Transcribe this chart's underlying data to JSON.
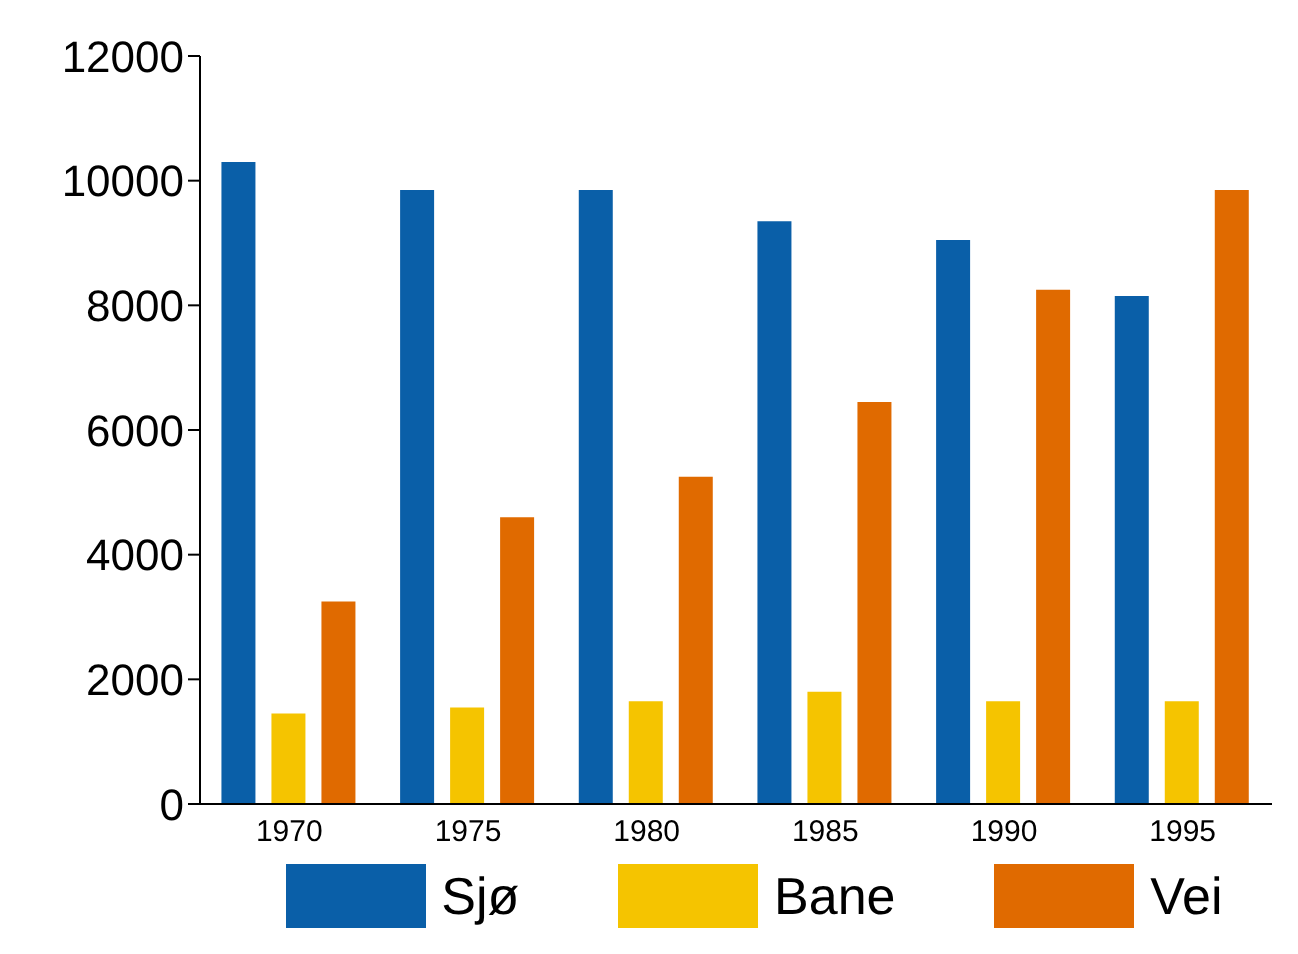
{
  "chart_data": {
    "type": "bar",
    "categories": [
      "1970",
      "1975",
      "1980",
      "1985",
      "1990",
      "1995"
    ],
    "series": [
      {
        "name": "Sjø",
        "color": "#0a5fa8",
        "values": [
          10300,
          9850,
          9850,
          9350,
          9050,
          8150
        ]
      },
      {
        "name": "Bane",
        "color": "#f5c400",
        "values": [
          1450,
          1550,
          1650,
          1800,
          1650,
          1650
        ]
      },
      {
        "name": "Vei",
        "color": "#e06a00",
        "values": [
          3250,
          4600,
          5250,
          6450,
          8250,
          9850
        ]
      }
    ],
    "ylim": [
      0,
      12000
    ],
    "yticks": [
      0,
      2000,
      4000,
      6000,
      8000,
      10000,
      12000
    ],
    "grid": false,
    "legend": "bottom"
  }
}
